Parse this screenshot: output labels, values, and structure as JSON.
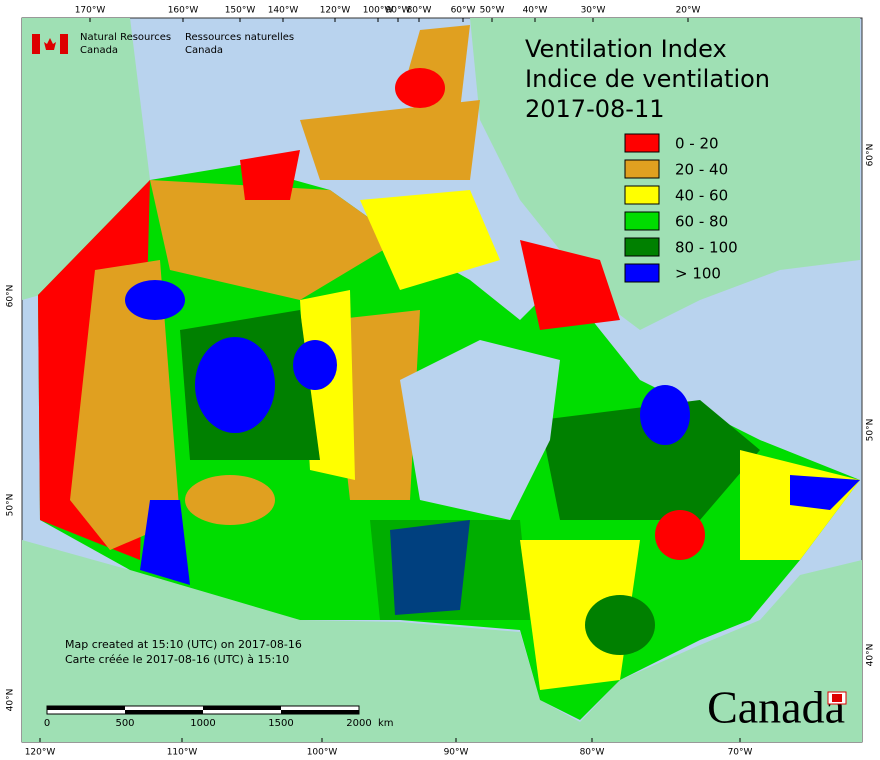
{
  "header": {
    "title": "Ventilation Index",
    "title_fr": "Indice de ventilation",
    "date": "2017-08-11"
  },
  "agency": {
    "en": [
      "Natural Resources",
      "Canada"
    ],
    "fr": [
      "Ressources naturelles",
      "Canada"
    ]
  },
  "legend": [
    {
      "label": "0 - 20",
      "color": "#ff0000"
    },
    {
      "label": "20 - 40",
      "color": "#e0a020"
    },
    {
      "label": "40 - 60",
      "color": "#ffff00"
    },
    {
      "label": "60 - 80",
      "color": "#00dd00"
    },
    {
      "label": "80 - 100",
      "color": "#008000"
    },
    {
      "label": "> 100",
      "color": "#0000ff"
    }
  ],
  "graticule": {
    "top": [
      "170°W",
      "160°W",
      "150°W",
      "140°W",
      "120°W",
      "100°W",
      "90°W",
      "80°W",
      "60°W",
      "50°W",
      "40°W",
      "30°W",
      "20°W"
    ],
    "bottom": [
      "120°W",
      "110°W",
      "100°W",
      "90°W",
      "80°W",
      "70°W"
    ],
    "left": [
      "60°N",
      "50°N",
      "40°N"
    ],
    "right": [
      "60°N",
      "50°N",
      "40°N"
    ]
  },
  "credits": [
    "Map created at 15:10 (UTC) on 2017-08-16",
    "Carte créée le 2017-08-16 (UTC) à 15:10"
  ],
  "scale_bar": {
    "labels": [
      "0",
      "500",
      "1000",
      "1500",
      "2000"
    ],
    "unit": "km"
  },
  "wordmark": "Canada"
}
